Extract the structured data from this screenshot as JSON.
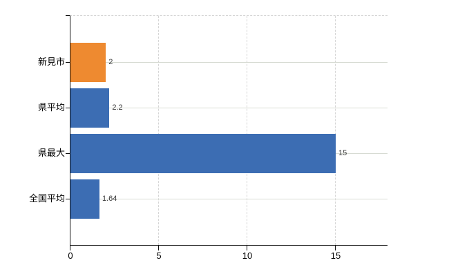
{
  "chart_data": {
    "type": "bar",
    "orientation": "horizontal",
    "title": "",
    "xlabel": "",
    "ylabel": "",
    "categories": [
      "新見市",
      "県平均",
      "県最大",
      "全国平均"
    ],
    "values": [
      2,
      2.2,
      15,
      1.64
    ],
    "value_labels": [
      "2",
      "2.2",
      "15",
      "1.64"
    ],
    "series": [
      {
        "name": "",
        "values": [
          2,
          2.2,
          15,
          1.64
        ]
      }
    ],
    "bar_colors": [
      "#ee8a30",
      "#3c6db3",
      "#3c6db3",
      "#3c6db3"
    ],
    "x_ticks": [
      0,
      5,
      10,
      15
    ],
    "x_tick_labels": [
      "0",
      "5",
      "10",
      "15"
    ],
    "xlim": [
      0,
      17.93
    ],
    "grid": true,
    "legend": false
  },
  "colors": {
    "bar_orange": "#ee8a30",
    "bar_blue": "#3c6db3",
    "axis": "#111111",
    "gridline_dashed": "#d5d5d5",
    "gridline_solid": "#d7dbd3",
    "category_text": "#000000",
    "value_text": "#3a3a3a",
    "background": "#ffffff"
  }
}
